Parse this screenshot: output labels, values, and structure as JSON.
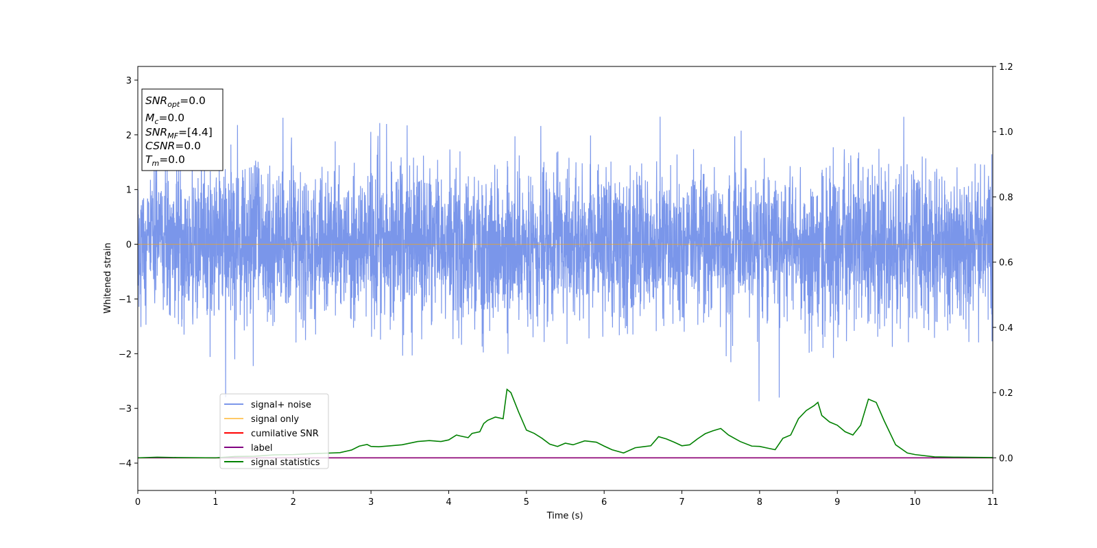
{
  "chart_data": {
    "type": "line",
    "xlabel": "Time (s)",
    "ylabel": "Whitened strain",
    "xlim": [
      0,
      11
    ],
    "ylim_left": [
      -4.5,
      3.25
    ],
    "ylim_right": [
      -0.1,
      1.2
    ],
    "x_ticks": [
      "0",
      "1",
      "2",
      "3",
      "4",
      "5",
      "6",
      "7",
      "8",
      "9",
      "10",
      "11"
    ],
    "y_ticks_left": [
      "−4",
      "−3",
      "−2",
      "−1",
      "0",
      "1",
      "2",
      "3"
    ],
    "y_ticks_right": [
      "0.0",
      "0.2",
      "0.4",
      "0.6",
      "0.8",
      "1.0",
      "1.2"
    ],
    "legend_position": "lower-left",
    "info_box": {
      "lines": [
        {
          "sym": "SNR",
          "sub": "opt",
          "value": "=0.0"
        },
        {
          "sym": "M",
          "sub": "c",
          "value": "=0.0"
        },
        {
          "sym": "SNR",
          "sub": "MF",
          "value": "=[4.4]"
        },
        {
          "sym": "CSNR",
          "sub": "",
          "value": "=0.0"
        },
        {
          "sym": "T",
          "sub": "m",
          "value": "=0.0"
        }
      ]
    },
    "series": [
      {
        "name": "signal+ noise",
        "color": "#4169e1",
        "axis": "left",
        "kind": "noise",
        "noise_sigma": 0.7,
        "range": [
          -2.9,
          2.5
        ]
      },
      {
        "name": "signal only",
        "color": "#ffa500",
        "axis": "left",
        "x": [
          0,
          11
        ],
        "y": [
          0,
          0
        ]
      },
      {
        "name": "cumilative SNR",
        "color": "#ff0000",
        "axis": "right",
        "x": [
          0,
          11
        ],
        "y": [
          0,
          0
        ]
      },
      {
        "name": "label",
        "color": "#800080",
        "axis": "right",
        "x": [
          0,
          11
        ],
        "y": [
          0,
          0
        ]
      },
      {
        "name": "signal statistics",
        "color": "#008000",
        "axis": "right",
        "x": [
          0,
          0.25,
          0.5,
          1.0,
          1.25,
          1.5,
          1.75,
          2.0,
          2.25,
          2.5,
          2.6,
          2.75,
          2.85,
          2.95,
          3.0,
          3.1,
          3.25,
          3.4,
          3.5,
          3.6,
          3.75,
          3.9,
          4.0,
          4.1,
          4.15,
          4.25,
          4.3,
          4.4,
          4.45,
          4.5,
          4.6,
          4.7,
          4.75,
          4.8,
          4.9,
          5.0,
          5.1,
          5.2,
          5.3,
          5.4,
          5.5,
          5.6,
          5.75,
          5.9,
          6.0,
          6.1,
          6.25,
          6.4,
          6.5,
          6.6,
          6.7,
          6.8,
          6.9,
          7.0,
          7.1,
          7.2,
          7.3,
          7.4,
          7.5,
          7.6,
          7.75,
          7.9,
          8.0,
          8.1,
          8.2,
          8.3,
          8.4,
          8.5,
          8.6,
          8.7,
          8.75,
          8.8,
          8.9,
          9.0,
          9.1,
          9.2,
          9.3,
          9.4,
          9.5,
          9.6,
          9.75,
          9.9,
          10.0,
          10.25,
          10.5,
          11.0
        ],
        "y": [
          0.0,
          0.002,
          0.001,
          0.0,
          0.004,
          0.005,
          0.009,
          0.01,
          0.013,
          0.015,
          0.016,
          0.024,
          0.036,
          0.041,
          0.035,
          0.034,
          0.037,
          0.04,
          0.045,
          0.05,
          0.053,
          0.05,
          0.055,
          0.07,
          0.067,
          0.062,
          0.075,
          0.08,
          0.105,
          0.115,
          0.125,
          0.12,
          0.21,
          0.2,
          0.14,
          0.085,
          0.075,
          0.06,
          0.042,
          0.035,
          0.045,
          0.04,
          0.052,
          0.048,
          0.036,
          0.025,
          0.015,
          0.031,
          0.034,
          0.037,
          0.065,
          0.058,
          0.048,
          0.037,
          0.04,
          0.058,
          0.074,
          0.083,
          0.09,
          0.07,
          0.05,
          0.036,
          0.035,
          0.03,
          0.025,
          0.06,
          0.07,
          0.12,
          0.145,
          0.16,
          0.17,
          0.13,
          0.11,
          0.1,
          0.08,
          0.07,
          0.1,
          0.18,
          0.17,
          0.115,
          0.04,
          0.015,
          0.01,
          0.003,
          0.002,
          0.001
        ]
      }
    ]
  }
}
